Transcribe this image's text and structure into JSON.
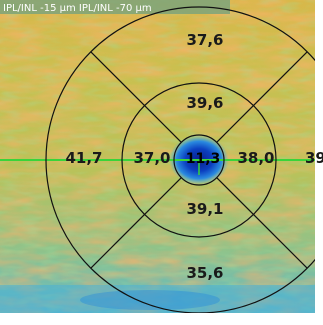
{
  "header": {
    "label": "IPL/INL -15 µm  IPL/INL -70 µm"
  },
  "grid": {
    "superior_outer": "37,6",
    "superior_inner": "39,6",
    "temporal_outer": "41,7",
    "temporal_inner": "37,0",
    "center": "11,3",
    "nasal_inner": "38,0",
    "nasal_outer": "39",
    "inferior_inner": "39,1",
    "inferior_outer": "35,6"
  },
  "colors": {
    "ring_stroke": "#111111",
    "crosshair": "#39d43a",
    "center_dark_blue": "#0a2fa8",
    "header_bg": "#7da37a"
  }
}
